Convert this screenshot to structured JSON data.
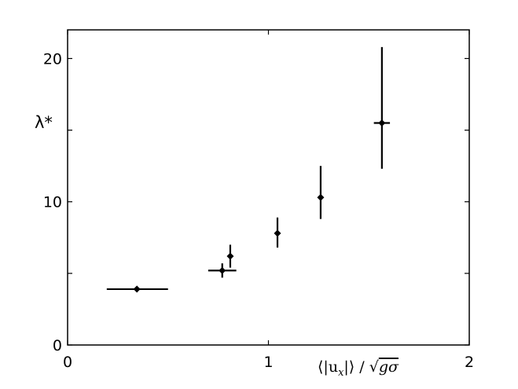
{
  "chart_data": {
    "type": "scatter",
    "title": "",
    "xlabel": "⟨|u",
    "xlabel_sub": "x",
    "xlabel_rest": "|⟩ / √",
    "xlabel_radicand": "gσ",
    "ylabel": "λ*",
    "xlim": [
      0,
      2
    ],
    "ylim": [
      0,
      22
    ],
    "xticks": [
      0,
      1,
      2
    ],
    "xtick_labels": [
      "0",
      "1",
      "2"
    ],
    "yticks": [
      0,
      10,
      20
    ],
    "ytick_labels": [
      "0",
      "10",
      "20"
    ],
    "yminor_ticks": [
      5,
      15
    ],
    "grid": false,
    "legend": "none",
    "color": "#000000",
    "points": [
      {
        "x": 0.345,
        "y": 3.9,
        "xerr_low": 0.15,
        "xerr_high": 0.155,
        "yerr_low": 0,
        "yerr_high": 0
      },
      {
        "x": 0.77,
        "y": 5.2,
        "xerr_low": 0.07,
        "xerr_high": 0.07,
        "yerr_low": 0.5,
        "yerr_high": 0.5
      },
      {
        "x": 0.81,
        "y": 6.2,
        "xerr_low": 0,
        "xerr_high": 0,
        "yerr_low": 0.8,
        "yerr_high": 0.8
      },
      {
        "x": 1.045,
        "y": 7.8,
        "xerr_low": 0,
        "xerr_high": 0,
        "yerr_low": 1.0,
        "yerr_high": 1.1
      },
      {
        "x": 1.26,
        "y": 10.3,
        "xerr_low": 0,
        "xerr_high": 0,
        "yerr_low": 1.5,
        "yerr_high": 2.2
      },
      {
        "x": 1.565,
        "y": 15.5,
        "xerr_low": 0.04,
        "xerr_high": 0.04,
        "yerr_low": 3.2,
        "yerr_high": 5.3
      }
    ]
  }
}
